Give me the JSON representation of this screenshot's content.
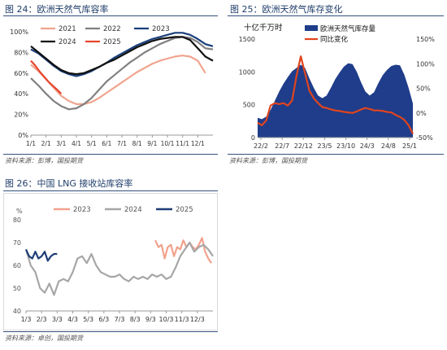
{
  "figures": [
    {
      "title": "图 24：欧洲天然气库容率",
      "source": "资料来源：彭博，国投期货",
      "chart_data": {
        "type": "line",
        "x_ticks": [
          "1/1",
          "2/1",
          "3/1",
          "4/1",
          "5/1",
          "6/1",
          "7/1",
          "8/1",
          "9/1",
          "10/1",
          "11/1",
          "12/1"
        ],
        "y_ticks": [
          "0%",
          "20%",
          "40%",
          "60%",
          "80%",
          "100%"
        ],
        "ylim": [
          0,
          100
        ],
        "xlim": [
          1,
          13
        ],
        "grid": false,
        "legend_position": "top",
        "series": [
          {
            "name": "2021",
            "color": "#f0a48e",
            "dash": false,
            "x": [
              1,
              1.5,
              2,
              2.5,
              3,
              3.5,
              4,
              4.5,
              5,
              5.5,
              6,
              6.5,
              7,
              7.5,
              8,
              8.5,
              9,
              9.5,
              10,
              10.5,
              11,
              11.5,
              12,
              12.5
            ],
            "y": [
              68,
              62,
              54,
              46,
              38,
              33,
              30,
              30,
              32,
              36,
              41,
              46,
              51,
              56,
              61,
              65,
              69,
              72,
              74,
              76,
              77,
              76,
              72,
              60
            ]
          },
          {
            "name": "2022",
            "color": "#808080",
            "dash": false,
            "x": [
              1,
              1.5,
              2,
              2.5,
              3,
              3.5,
              4,
              4.5,
              5,
              5.5,
              6,
              6.5,
              7,
              7.5,
              8,
              8.5,
              9,
              9.5,
              10,
              10.5,
              11,
              11.5,
              12,
              12.5,
              13
            ],
            "y": [
              55,
              48,
              40,
              33,
              28,
              25,
              26,
              30,
              36,
              44,
              52,
              58,
              64,
              70,
              75,
              80,
              84,
              88,
              91,
              94,
              95,
              94,
              90,
              84,
              83
            ]
          },
          {
            "name": "2023",
            "color": "#1a3f7c",
            "dash": false,
            "x": [
              1,
              1.5,
              2,
              2.5,
              3,
              3.5,
              4,
              4.5,
              5,
              5.5,
              6,
              6.5,
              7,
              7.5,
              8,
              8.5,
              9,
              9.5,
              10,
              10.5,
              11,
              11.5,
              12,
              12.5,
              13
            ],
            "y": [
              83,
              79,
              73,
              67,
              62,
              59,
              57,
              59,
              62,
              66,
              70,
              75,
              79,
              83,
              87,
              90,
              93,
              95,
              97,
              99,
              99,
              97,
              93,
              88,
              86
            ]
          },
          {
            "name": "2024",
            "color": "#111111",
            "dash": false,
            "x": [
              1,
              1.5,
              2,
              2.5,
              3,
              3.5,
              4,
              4.5,
              5,
              5.5,
              6,
              6.5,
              7,
              7.5,
              8,
              8.5,
              9,
              9.5,
              10,
              10.5,
              11,
              11.5,
              12,
              12.5,
              13
            ],
            "y": [
              86,
              80,
              74,
              68,
              63,
              60,
              59,
              60,
              63,
              66,
              70,
              73,
              77,
              81,
              85,
              88,
              91,
              93,
              94,
              95,
              95,
              92,
              84,
              76,
              72
            ]
          },
          {
            "name": "2025",
            "color": "#e8452c",
            "dash": false,
            "x": [
              1,
              1.3,
              1.6,
              1.9,
              2.2,
              2.5,
              2.8,
              3.0
            ],
            "y": [
              72,
              67,
              61,
              56,
              51,
              47,
              43,
              40
            ]
          }
        ]
      }
    },
    {
      "title": "图 25：欧洲天然气库存变化",
      "source": "资料来源：彭博，国投期货",
      "chart_data": {
        "type": "area",
        "ylabel_left": "十亿千万时",
        "x_ticks": [
          "22/2",
          "22/7",
          "22/12",
          "23/5",
          "23/10",
          "24/3",
          "24/8",
          "25/1"
        ],
        "y_ticks_left": [
          "0",
          "500",
          "1000",
          "1500"
        ],
        "y_ticks_right": [
          "-50%",
          "0%",
          "50%",
          "100%",
          "150%"
        ],
        "ylim_left": [
          0,
          1500
        ],
        "ylim_right": [
          -50,
          150
        ],
        "xlim": [
          0,
          36
        ],
        "grid": false,
        "legend_position": "top",
        "series": [
          {
            "name": "欧洲天然气库存量",
            "axis": "left",
            "color": "#1f3d8a",
            "x": [
              0,
              1,
              2,
              3,
              4,
              5,
              6,
              7,
              8,
              9,
              10,
              11,
              12,
              13,
              14,
              15,
              16,
              17,
              18,
              19,
              20,
              21,
              22,
              23,
              24,
              25,
              26,
              27,
              28,
              29,
              30,
              31,
              32,
              33,
              34,
              35,
              36
            ],
            "y": [
              300,
              280,
              320,
              420,
              560,
              700,
              820,
              920,
              1010,
              1060,
              1110,
              1060,
              900,
              760,
              640,
              600,
              640,
              760,
              890,
              990,
              1080,
              1130,
              1120,
              1000,
              840,
              700,
              640,
              690,
              830,
              950,
              1030,
              1090,
              1110,
              1100,
              960,
              760,
              520
            ]
          },
          {
            "name": "同比变化",
            "axis": "right",
            "color": "#e0441e",
            "x": [
              0,
              1,
              2,
              3,
              4,
              5,
              6,
              7,
              8,
              9,
              10,
              11,
              12,
              13,
              14,
              15,
              16,
              17,
              18,
              19,
              20,
              21,
              22,
              23,
              24,
              25,
              26,
              27,
              28,
              29,
              30,
              31,
              32,
              33,
              34,
              35,
              36
            ],
            "y": [
              -20,
              -25,
              -15,
              15,
              20,
              18,
              20,
              15,
              25,
              75,
              115,
              80,
              45,
              30,
              20,
              12,
              10,
              7,
              5,
              4,
              2,
              1,
              0,
              3,
              7,
              10,
              8,
              5,
              5,
              4,
              2,
              1,
              -4,
              -8,
              -14,
              -25,
              -42
            ]
          }
        ]
      }
    },
    {
      "title": "图 26：中国 LNG 接收站库容率",
      "source": "资料来源：卓创，国投期货",
      "chart_data": {
        "type": "line",
        "yunit": "%",
        "x_ticks": [
          "1/3",
          "2/3",
          "3/3",
          "4/3",
          "5/3",
          "6/3",
          "7/3",
          "8/3",
          "9/3",
          "10/3",
          "11/3",
          "12/3"
        ],
        "y_ticks": [
          "40",
          "50",
          "60",
          "70",
          "80"
        ],
        "ylim": [
          40,
          80
        ],
        "xlim": [
          1,
          13
        ],
        "grid": false,
        "legend_position": "top",
        "series": [
          {
            "name": "2023",
            "color": "#f2a28c",
            "dash": false,
            "x": [
              9.3,
              9.5,
              9.7,
              9.9,
              10.1,
              10.3,
              10.5,
              10.7,
              10.9,
              11.1,
              11.3,
              11.5,
              11.7,
              11.9,
              12.1,
              12.3,
              12.5,
              12.7,
              12.9
            ],
            "y": [
              71,
              68,
              69,
              63,
              68,
              69,
              64,
              68,
              67,
              71,
              68,
              70,
              68,
              67,
              69,
              72,
              66,
              63,
              61
            ]
          },
          {
            "name": "2024",
            "color": "#a6a6a6",
            "dash": false,
            "x": [
              1,
              1.3,
              1.6,
              1.9,
              2.2,
              2.5,
              2.8,
              3.1,
              3.4,
              3.7,
              4,
              4.3,
              4.6,
              4.9,
              5.2,
              5.5,
              5.8,
              6.1,
              6.4,
              6.7,
              7,
              7.3,
              7.6,
              7.9,
              8.2,
              8.5,
              8.8,
              9.1,
              9.4,
              9.7,
              10,
              10.3,
              10.6,
              10.9,
              11.2,
              11.5,
              11.8,
              12.1,
              12.4,
              12.7,
              13
            ],
            "y": [
              67,
              60,
              57,
              50,
              48,
              52,
              47,
              53,
              54,
              53,
              57,
              63,
              64,
              61,
              65,
              60,
              57,
              56,
              55,
              55,
              56,
              54,
              53,
              55,
              54,
              55,
              54,
              56,
              55,
              56,
              54,
              55,
              59,
              64,
              67,
              70,
              66,
              68,
              69,
              67,
              64
            ]
          },
          {
            "name": "2025",
            "color": "#1f3d75",
            "dash": false,
            "x": [
              1,
              1.2,
              1.4,
              1.6,
              1.8,
              2.0,
              2.2,
              2.4,
              2.6,
              2.8,
              3.0
            ],
            "y": [
              67,
              64,
              63,
              66,
              63,
              64,
              66,
              62,
              64,
              65,
              65
            ]
          }
        ]
      }
    }
  ]
}
